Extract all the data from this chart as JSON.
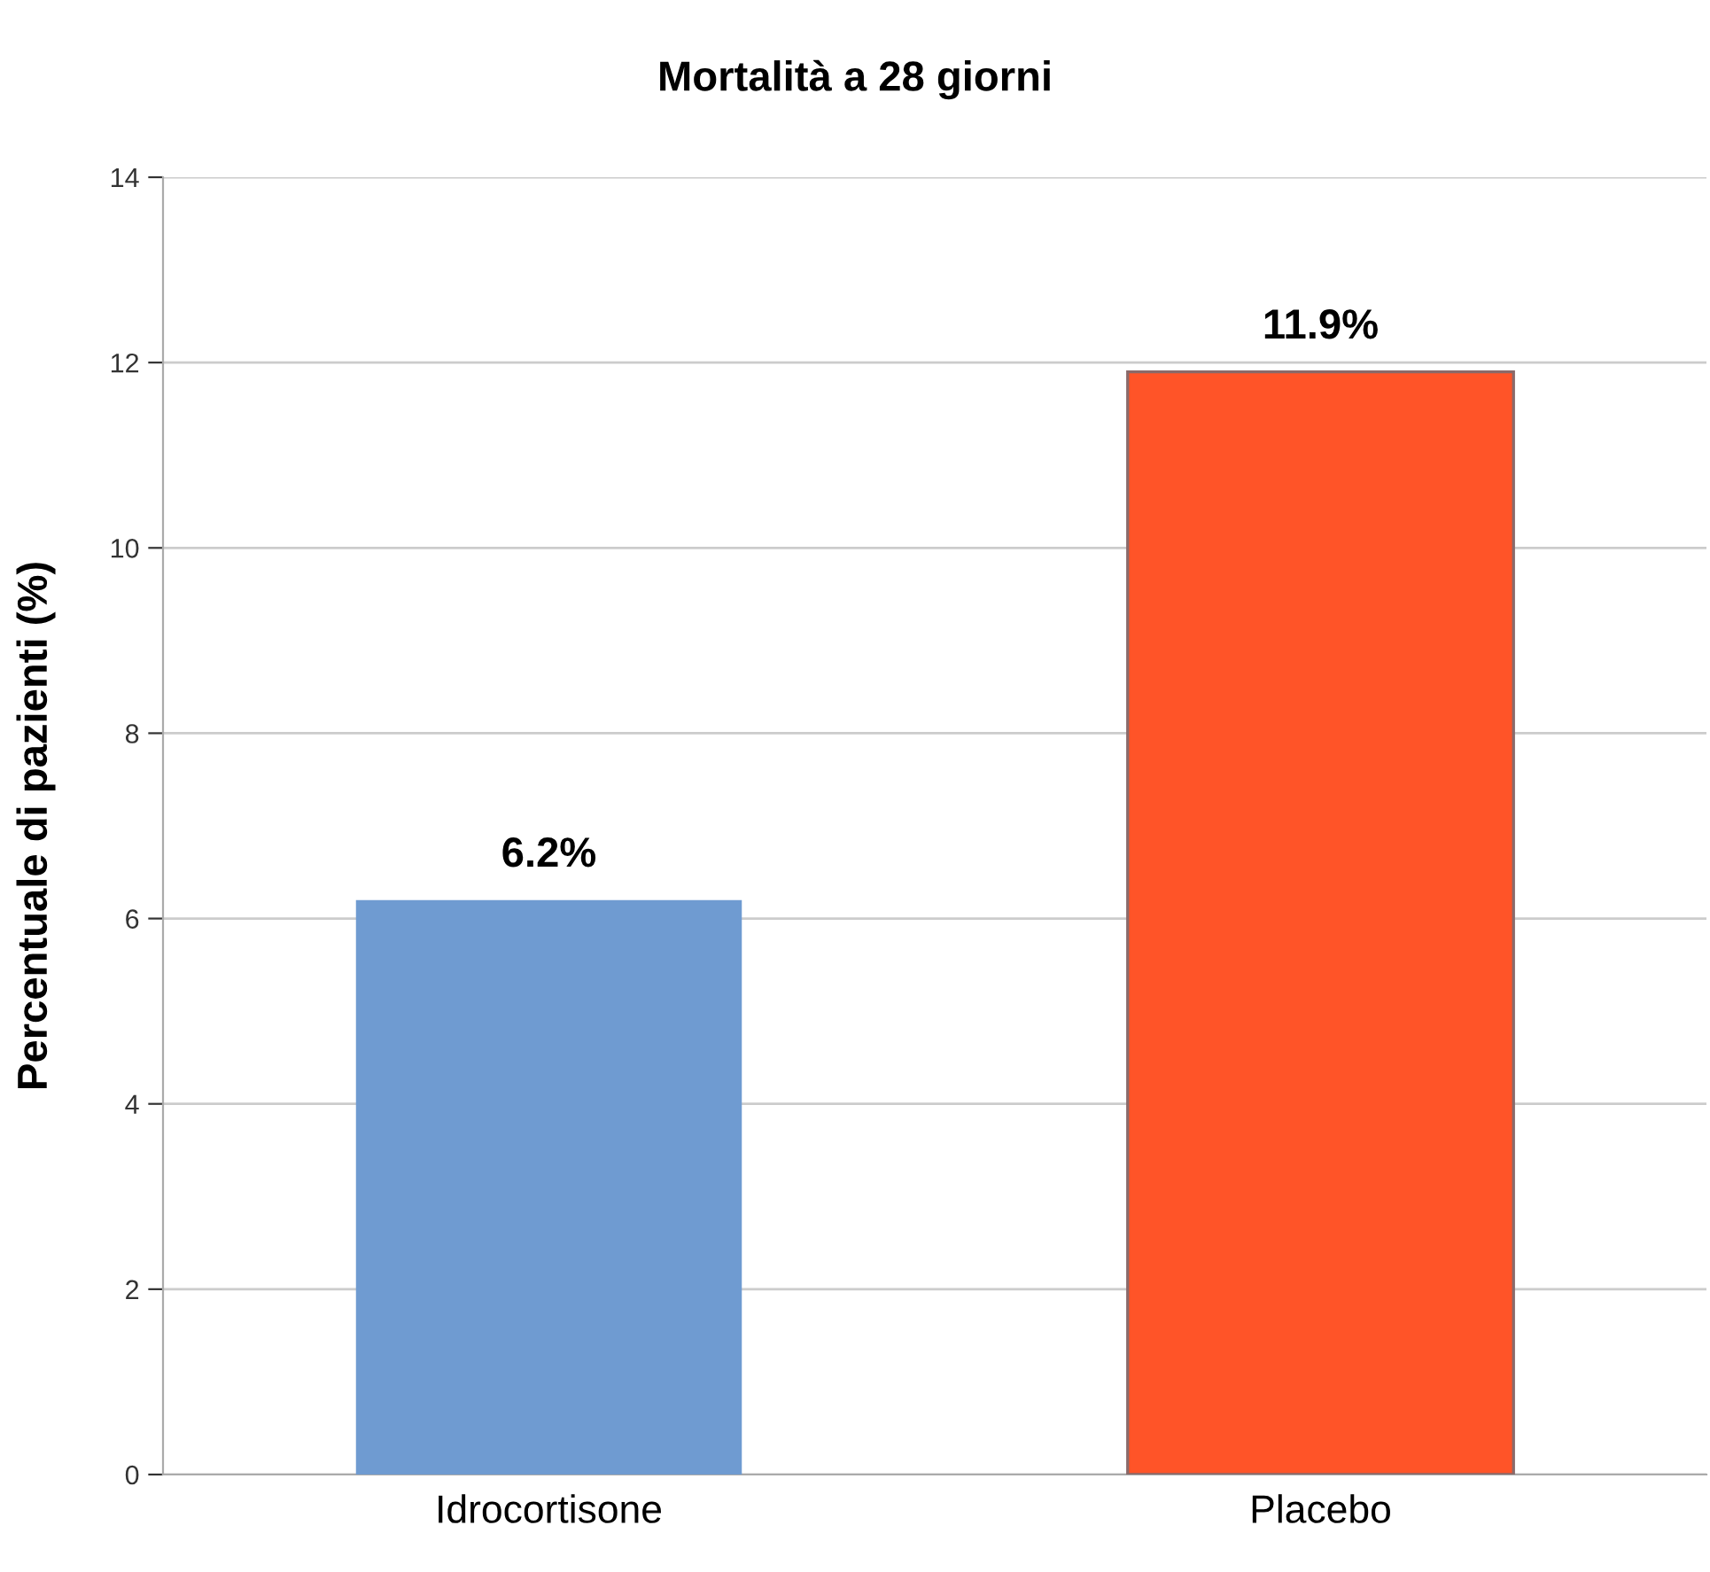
{
  "chart_data": {
    "type": "bar",
    "title": "Mortalità a 28 giorni",
    "ylabel": "Percentuale di pazienti (%)",
    "categories": [
      "Idrocortisone",
      "Placebo"
    ],
    "values": [
      6.2,
      11.9
    ],
    "colors": [
      "#6f9bd1",
      "#ff5428"
    ],
    "value_labels": [
      "6.2%",
      "11.9%"
    ],
    "ylim": [
      0,
      14
    ],
    "yticks": [
      0,
      2,
      4,
      6,
      8,
      10,
      12,
      14
    ],
    "grid": "y",
    "legend": false
  }
}
